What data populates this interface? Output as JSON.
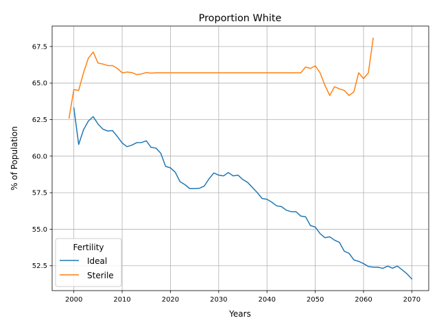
{
  "chart_data": {
    "type": "line",
    "title": "Proportion White",
    "xlabel": "Years",
    "ylabel": "% of Population",
    "xlim": [
      1995.5,
      2073.5
    ],
    "ylim": [
      50.8,
      68.9
    ],
    "xticks": [
      2000,
      2010,
      2020,
      2030,
      2040,
      2050,
      2060,
      2070
    ],
    "yticks": [
      52.5,
      55.0,
      57.5,
      60.0,
      62.5,
      65.0,
      67.5
    ],
    "ytick_labels": [
      "52.5",
      "55.0",
      "57.5",
      "60.0",
      "62.5",
      "65.0",
      "67.5"
    ],
    "grid": true,
    "legend": {
      "title": "Fertility",
      "placement": "lower-left"
    },
    "series": [
      {
        "name": "Ideal",
        "color": "#1f77b4",
        "x": [
          2000,
          2001,
          2002,
          2003,
          2004,
          2005,
          2006,
          2007,
          2008,
          2009,
          2010,
          2011,
          2012,
          2013,
          2014,
          2015,
          2016,
          2017,
          2018,
          2019,
          2020,
          2021,
          2022,
          2023,
          2024,
          2025,
          2026,
          2027,
          2028,
          2029,
          2030,
          2031,
          2032,
          2033,
          2034,
          2035,
          2036,
          2037,
          2038,
          2039,
          2040,
          2041,
          2042,
          2043,
          2044,
          2045,
          2046,
          2047,
          2048,
          2049,
          2050,
          2051,
          2052,
          2053,
          2054,
          2055,
          2056,
          2057,
          2058,
          2059,
          2060,
          2061,
          2062,
          2063,
          2064,
          2065,
          2066,
          2067,
          2068,
          2069,
          2070
        ],
        "values": [
          63.3,
          60.8,
          61.8,
          62.4,
          62.7,
          62.2,
          61.85,
          61.72,
          61.75,
          61.35,
          60.9,
          60.65,
          60.75,
          60.92,
          60.93,
          61.05,
          60.6,
          60.55,
          60.2,
          59.3,
          59.2,
          58.9,
          58.25,
          58.05,
          57.78,
          57.78,
          57.8,
          57.95,
          58.45,
          58.85,
          58.7,
          58.65,
          58.88,
          58.65,
          58.7,
          58.4,
          58.2,
          57.85,
          57.5,
          57.1,
          57.05,
          56.85,
          56.6,
          56.55,
          56.3,
          56.2,
          56.2,
          55.9,
          55.85,
          55.25,
          55.15,
          54.7,
          54.42,
          54.48,
          54.25,
          54.1,
          53.5,
          53.35,
          52.9,
          52.8,
          52.65,
          52.45,
          52.4,
          52.4,
          52.32,
          52.48,
          52.33,
          52.48,
          52.22,
          51.95,
          51.6
        ]
      },
      {
        "name": "Sterile",
        "color": "#ff7f0e",
        "x": [
          1999,
          2000,
          2001,
          2002,
          2003,
          2004,
          2005,
          2006,
          2007,
          2008,
          2009,
          2010,
          2011,
          2012,
          2013,
          2014,
          2015,
          2016,
          2017,
          2018,
          2019,
          2020,
          2021,
          2022,
          2023,
          2024,
          2025,
          2026,
          2027,
          2028,
          2029,
          2030,
          2031,
          2032,
          2033,
          2034,
          2035,
          2036,
          2037,
          2038,
          2039,
          2040,
          2041,
          2042,
          2043,
          2044,
          2045,
          2046,
          2047,
          2048,
          2049,
          2050,
          2051,
          2052,
          2053,
          2054,
          2055,
          2056,
          2057,
          2058,
          2059,
          2060,
          2061,
          2062
        ],
        "values": [
          62.6,
          64.55,
          64.5,
          65.7,
          66.7,
          67.12,
          66.37,
          66.3,
          66.2,
          66.2,
          66.0,
          65.7,
          65.75,
          65.72,
          65.58,
          65.62,
          65.72,
          65.68,
          65.7,
          65.7,
          65.7,
          65.7,
          65.7,
          65.7,
          65.7,
          65.7,
          65.7,
          65.7,
          65.7,
          65.7,
          65.7,
          65.7,
          65.7,
          65.7,
          65.7,
          65.7,
          65.7,
          65.7,
          65.7,
          65.7,
          65.7,
          65.7,
          65.7,
          65.7,
          65.7,
          65.7,
          65.7,
          65.7,
          65.7,
          66.1,
          66.0,
          66.18,
          65.7,
          64.85,
          64.15,
          64.75,
          64.6,
          64.5,
          64.15,
          64.4,
          65.7,
          65.3,
          65.7,
          68.07
        ]
      }
    ]
  }
}
